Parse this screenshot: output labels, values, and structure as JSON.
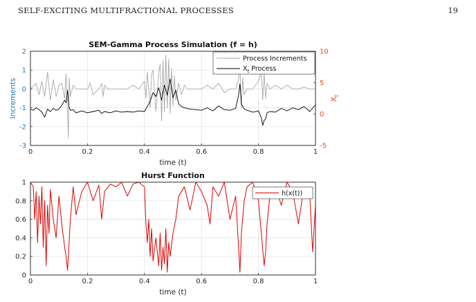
{
  "page": {
    "running_title": "SELF-EXCITING MULTIFRACTIONAL PROCESSES",
    "page_number": "19"
  },
  "chart_data": [
    {
      "type": "line",
      "title": "SEM-Gamma Process Simulation (f = h)",
      "xlabel": "time (t)",
      "ylabel_left": "Increments",
      "ylabel_right": "X",
      "ylabel_right_sub": "t",
      "xlim": [
        0,
        1
      ],
      "ylim_left": [
        -3,
        2
      ],
      "ylim_right": [
        -5,
        10
      ],
      "x_ticks": [
        "0",
        "0.2",
        "0.4",
        "0.6",
        "0.8",
        "1"
      ],
      "y_ticks_left": [
        "-3",
        "-2",
        "-1",
        "0",
        "1",
        "2"
      ],
      "y_ticks_right": [
        "-5",
        "0",
        "5",
        "10"
      ],
      "grid": true,
      "legend_position": "top-right",
      "colors": {
        "left_axis": "#1f77b4",
        "right_axis": "#d95319",
        "increments": "#a8a8a8",
        "process": "#000000"
      },
      "series": [
        {
          "name": "Process Increments",
          "axis": "left",
          "color": "#a8a8a8",
          "x": [
            0,
            0.02,
            0.03,
            0.04,
            0.05,
            0.06,
            0.07,
            0.08,
            0.09,
            0.1,
            0.11,
            0.12,
            0.125,
            0.13,
            0.133,
            0.136,
            0.14,
            0.15,
            0.16,
            0.18,
            0.2,
            0.21,
            0.22,
            0.24,
            0.25,
            0.255,
            0.26,
            0.27,
            0.28,
            0.3,
            0.32,
            0.34,
            0.36,
            0.38,
            0.4,
            0.405,
            0.41,
            0.42,
            0.425,
            0.43,
            0.44,
            0.45,
            0.455,
            0.46,
            0.465,
            0.47,
            0.475,
            0.48,
            0.485,
            0.49,
            0.495,
            0.5,
            0.505,
            0.51,
            0.52,
            0.53,
            0.54,
            0.55,
            0.56,
            0.58,
            0.6,
            0.62,
            0.64,
            0.66,
            0.68,
            0.7,
            0.72,
            0.73,
            0.735,
            0.74,
            0.745,
            0.75,
            0.76,
            0.78,
            0.8,
            0.81,
            0.815,
            0.82,
            0.825,
            0.83,
            0.84,
            0.86,
            0.88,
            0.9,
            0.92,
            0.94,
            0.96,
            0.98,
            1.0
          ],
          "values": [
            0,
            0.3,
            -0.3,
            0.4,
            -0.4,
            0.9,
            -0.6,
            0.5,
            -0.4,
            0.2,
            0.3,
            -0.5,
            0.8,
            -1.3,
            -2.6,
            0.6,
            -0.4,
            0.2,
            0,
            0,
            0,
            0.3,
            -0.3,
            0,
            0.3,
            -0.4,
            0.2,
            0,
            0,
            0,
            0,
            0,
            0.2,
            0,
            0.4,
            -0.5,
            0.9,
            -1.0,
            0.8,
            1.0,
            -1.2,
            0.9,
            1.3,
            -1.7,
            1.5,
            -1.2,
            1.8,
            -1.0,
            1.6,
            -1.3,
            1.1,
            -0.9,
            0.7,
            -0.6,
            0.3,
            -0.3,
            0.2,
            0,
            0,
            0,
            0,
            0.2,
            0,
            0.3,
            -0.2,
            0,
            0,
            0.5,
            1.2,
            -1.0,
            0.6,
            -0.3,
            0,
            0,
            0.4,
            0.9,
            -0.6,
            0.8,
            -0.5,
            0.3,
            0,
            0.2,
            0,
            0.2,
            0,
            0,
            0.1,
            0,
            0
          ]
        },
        {
          "name": "X",
          "name_sub": "t",
          "name_suffix": " Process",
          "axis": "right",
          "color": "#000000",
          "x": [
            0,
            0.01,
            0.02,
            0.03,
            0.04,
            0.05,
            0.06,
            0.07,
            0.08,
            0.09,
            0.1,
            0.11,
            0.12,
            0.125,
            0.13,
            0.135,
            0.14,
            0.15,
            0.16,
            0.18,
            0.2,
            0.22,
            0.24,
            0.25,
            0.26,
            0.28,
            0.3,
            0.32,
            0.34,
            0.36,
            0.38,
            0.4,
            0.41,
            0.42,
            0.43,
            0.44,
            0.45,
            0.46,
            0.47,
            0.48,
            0.49,
            0.5,
            0.51,
            0.52,
            0.53,
            0.54,
            0.56,
            0.58,
            0.6,
            0.62,
            0.64,
            0.66,
            0.68,
            0.7,
            0.72,
            0.73,
            0.735,
            0.74,
            0.75,
            0.76,
            0.78,
            0.8,
            0.81,
            0.815,
            0.82,
            0.825,
            0.83,
            0.84,
            0.86,
            0.88,
            0.9,
            0.92,
            0.94,
            0.96,
            0.98,
            1.0
          ],
          "values": [
            0.8,
            0.6,
            1.0,
            0.7,
            0.3,
            -0.5,
            0.8,
            0.4,
            0.9,
            0.6,
            0.8,
            1.4,
            2.2,
            1.8,
            3.8,
            1.2,
            0.6,
            0.7,
            0.2,
            0.5,
            0.2,
            0.4,
            0.6,
            0.1,
            0.4,
            0.2,
            0.5,
            0.3,
            0.4,
            0.3,
            0.5,
            0.4,
            1.2,
            2.0,
            3.4,
            2.8,
            4.2,
            2.2,
            4.6,
            3.0,
            5.6,
            2.6,
            3.8,
            1.6,
            1.2,
            1.0,
            0.8,
            0.7,
            0.6,
            1.0,
            0.5,
            1.3,
            0.7,
            0.6,
            0.9,
            3.0,
            4.8,
            1.6,
            0.8,
            0.6,
            0.3,
            0.5,
            -0.6,
            -1.8,
            -1.0,
            -0.8,
            0.2,
            0.4,
            0.3,
            0.9,
            0.5,
            1.0,
            0.7,
            1.2,
            0.4,
            1.5
          ]
        }
      ]
    },
    {
      "type": "line",
      "title": "Hurst Function",
      "xlabel": "time (t)",
      "ylabel": "",
      "xlim": [
        0,
        1
      ],
      "ylim": [
        0,
        1
      ],
      "x_ticks": [
        "0",
        "0.2",
        "0.4",
        "0.6",
        "0.8",
        "1"
      ],
      "y_ticks": [
        "0",
        "0.2",
        "0.4",
        "0.6",
        "0.8",
        "1"
      ],
      "grid": true,
      "legend_position": "top-right",
      "series": [
        {
          "name": "h(x(t))",
          "color": "#e00000",
          "x": [
            0,
            0.01,
            0.015,
            0.02,
            0.025,
            0.03,
            0.035,
            0.04,
            0.045,
            0.05,
            0.055,
            0.06,
            0.065,
            0.07,
            0.08,
            0.09,
            0.1,
            0.11,
            0.12,
            0.125,
            0.13,
            0.135,
            0.14,
            0.15,
            0.16,
            0.18,
            0.2,
            0.22,
            0.24,
            0.25,
            0.26,
            0.28,
            0.3,
            0.32,
            0.34,
            0.36,
            0.38,
            0.4,
            0.405,
            0.41,
            0.415,
            0.42,
            0.425,
            0.43,
            0.44,
            0.45,
            0.455,
            0.46,
            0.465,
            0.47,
            0.475,
            0.48,
            0.485,
            0.49,
            0.5,
            0.51,
            0.52,
            0.54,
            0.56,
            0.58,
            0.6,
            0.62,
            0.63,
            0.64,
            0.66,
            0.68,
            0.7,
            0.72,
            0.73,
            0.735,
            0.74,
            0.75,
            0.76,
            0.78,
            0.8,
            0.81,
            0.82,
            0.825,
            0.83,
            0.84,
            0.86,
            0.88,
            0.9,
            0.92,
            0.94,
            0.96,
            0.98,
            0.99,
            1.0
          ],
          "values": [
            1.0,
            0.95,
            0.6,
            0.9,
            0.35,
            0.85,
            0.55,
            0.95,
            0.3,
            0.8,
            0.1,
            0.75,
            0.45,
            0.92,
            0.6,
            0.4,
            0.85,
            0.55,
            0.3,
            0.2,
            0.05,
            0.3,
            0.6,
            0.95,
            0.65,
            0.9,
            1.0,
            0.8,
            0.97,
            0.6,
            0.9,
            0.98,
            0.95,
            1.0,
            0.85,
            0.98,
            1.0,
            0.95,
            0.55,
            0.35,
            0.6,
            0.2,
            0.5,
            0.15,
            0.4,
            0.1,
            0.45,
            0.05,
            0.3,
            0.12,
            0.5,
            0.03,
            0.35,
            0.2,
            0.45,
            0.6,
            0.85,
            0.95,
            0.7,
            1.0,
            0.9,
            0.75,
            0.55,
            0.95,
            0.85,
            1.0,
            0.6,
            0.85,
            0.3,
            0.03,
            0.45,
            0.8,
            0.95,
            1.0,
            0.8,
            0.45,
            0.1,
            0.25,
            0.55,
            0.85,
            0.95,
            0.75,
            1.0,
            0.9,
            0.55,
            0.95,
            0.85,
            0.25,
            0.75
          ]
        }
      ]
    }
  ]
}
